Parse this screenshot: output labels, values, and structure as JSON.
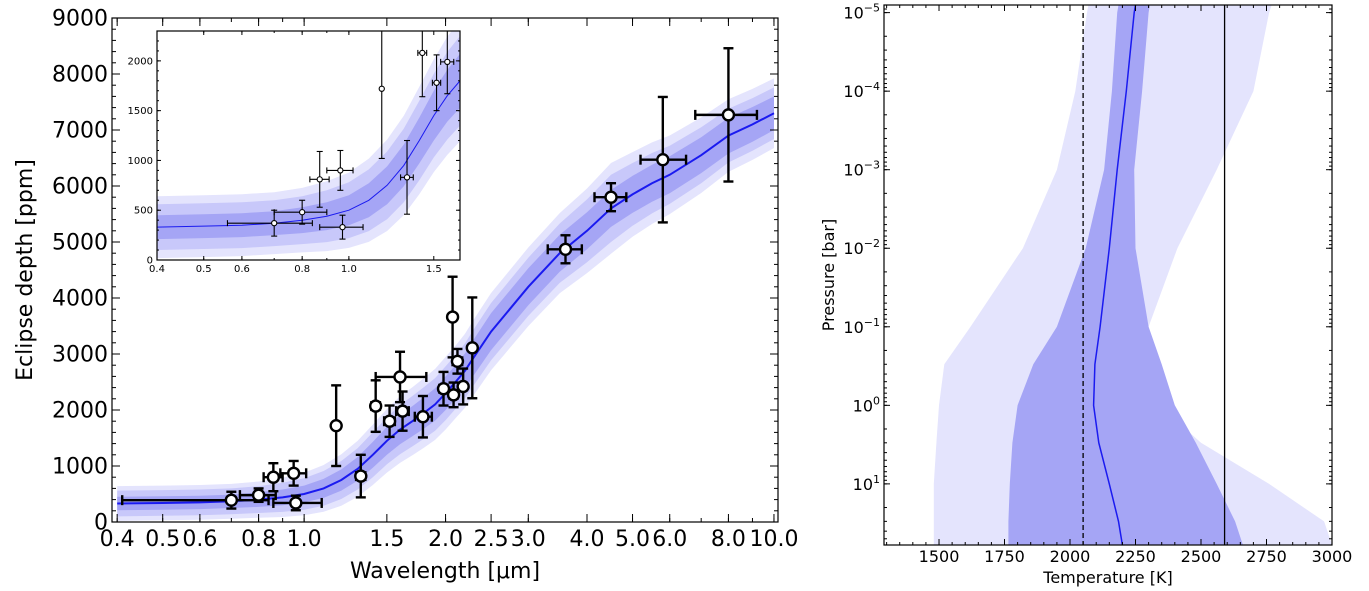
{
  "chart_data": [
    {
      "type": "scatter",
      "xlabel": "Wavelength [μm]",
      "ylabel": "Eclipse depth [ppm]",
      "xscale": "log",
      "xlim": [
        0.39,
        10.2
      ],
      "ylim": [
        0,
        9000
      ],
      "xticks": [
        0.4,
        0.5,
        0.6,
        0.8,
        1.0,
        1.5,
        2.0,
        2.5,
        3.0,
        4.0,
        5.0,
        6.0,
        8.0,
        10.0
      ],
      "xtick_labels": [
        "0.4",
        "0.5",
        "0.6",
        "0.8",
        "1.0",
        "1.5",
        "2.0",
        "2.5",
        "3.0",
        "4.0",
        "5.0",
        "6.0",
        "8.0",
        "10.0"
      ],
      "yticks": [
        0,
        1000,
        2000,
        3000,
        4000,
        5000,
        6000,
        7000,
        8000,
        9000
      ],
      "ytick_labels": [
        "0",
        "1000",
        "2000",
        "3000",
        "4000",
        "5000",
        "6000",
        "7000",
        "8000",
        "9000"
      ],
      "model": {
        "x": [
          0.4,
          0.5,
          0.6,
          0.7,
          0.8,
          0.9,
          1.0,
          1.1,
          1.2,
          1.3,
          1.4,
          1.5,
          1.6,
          1.7,
          1.8,
          1.9,
          2.0,
          2.1,
          2.2,
          2.3,
          2.5,
          3.0,
          3.5,
          4.0,
          4.5,
          5.0,
          5.5,
          6.0,
          7.0,
          8.0,
          9.0,
          10.0
        ],
        "median": [
          330,
          340,
          350,
          370,
          400,
          440,
          500,
          600,
          750,
          950,
          1200,
          1450,
          1650,
          1800,
          1950,
          2100,
          2300,
          2500,
          2700,
          2950,
          3400,
          4200,
          4800,
          5200,
          5600,
          5850,
          6050,
          6200,
          6550,
          6900,
          7100,
          7300
        ],
        "sigma1": [
          120,
          120,
          120,
          120,
          130,
          140,
          150,
          170,
          190,
          210,
          230,
          250,
          260,
          270,
          280,
          290,
          300,
          300,
          310,
          320,
          330,
          330,
          330,
          330,
          330,
          330,
          330,
          330,
          320,
          320,
          310,
          300
        ],
        "sigma2": [
          230,
          230,
          230,
          230,
          240,
          260,
          280,
          310,
          340,
          370,
          400,
          420,
          440,
          450,
          460,
          470,
          480,
          480,
          490,
          500,
          510,
          520,
          530,
          560,
          600,
          560,
          540,
          520,
          500,
          480,
          470,
          460
        ]
      },
      "series": [
        {
          "points": [
            {
              "x": 0.7,
              "xerr": [
                0.29,
                0.14
              ],
              "y": 390,
              "yerr": 150
            },
            {
              "x": 0.8,
              "xerr": [
                0.07,
                0.07
              ],
              "y": 480,
              "yerr": 120
            },
            {
              "x": 0.86,
              "xerr": [
                0.04,
                0.04
              ],
              "y": 800,
              "yerr": 250
            },
            {
              "x": 0.95,
              "xerr": [
                0.06,
                0.06
              ],
              "y": 870,
              "yerr": 220
            },
            {
              "x": 0.96,
              "xerr": [
                0.1,
                0.13
              ],
              "y": 340,
              "yerr": 130
            },
            {
              "x": 1.17,
              "xerr": [
                0,
                0
              ],
              "y": 1720,
              "yerr": 720
            },
            {
              "x": 1.32,
              "xerr": [
                0.03,
                0.03
              ],
              "y": 820,
              "yerr": 380
            },
            {
              "x": 1.42,
              "xerr": [
                0.03,
                0.03
              ],
              "y": 2070,
              "yerr": 460
            },
            {
              "x": 1.52,
              "xerr": [
                0.04,
                0.04
              ],
              "y": 1800,
              "yerr": 280
            },
            {
              "x": 1.6,
              "xerr": [
                0.18,
                0.22
              ],
              "y": 2590,
              "yerr": 450
            },
            {
              "x": 1.62,
              "xerr": [
                0.05,
                0.05
              ],
              "y": 1980,
              "yerr": 350
            },
            {
              "x": 1.79,
              "xerr": [
                0.07,
                0.08
              ],
              "y": 1880,
              "yerr": 370
            },
            {
              "x": 1.98,
              "xerr": [
                0.04,
                0.04
              ],
              "y": 2380,
              "yerr": 300
            },
            {
              "x": 2.07,
              "xerr": [
                0.03,
                0.03
              ],
              "y": 3660,
              "yerr": 720
            },
            {
              "x": 2.08,
              "xerr": [
                0.04,
                0.04
              ],
              "y": 2270,
              "yerr": 220
            },
            {
              "x": 2.12,
              "xerr": [
                0.05,
                0.05
              ],
              "y": 2870,
              "yerr": 220
            },
            {
              "x": 2.18,
              "xerr": [
                0.04,
                0.04
              ],
              "y": 2420,
              "yerr": 320
            },
            {
              "x": 2.28,
              "xerr": [
                0.03,
                0.03
              ],
              "y": 3110,
              "yerr": 900
            },
            {
              "x": 3.6,
              "xerr": [
                0.3,
                0.3
              ],
              "y": 4870,
              "yerr": 250
            },
            {
              "x": 4.5,
              "xerr": [
                0.35,
                0.35
              ],
              "y": 5800,
              "yerr": 250
            },
            {
              "x": 5.8,
              "xerr": [
                0.6,
                0.7
              ],
              "y": 6470,
              "yerr": 1120
            },
            {
              "x": 8.0,
              "xerr": [
                1.2,
                1.2
              ],
              "y": 7270,
              "yerr": 1190
            }
          ]
        }
      ]
    },
    {
      "type": "scatter",
      "inset": true,
      "xscale": "log",
      "xlim": [
        0.4,
        1.7
      ],
      "ylim": [
        0,
        2300
      ],
      "xticks": [
        0.4,
        0.5,
        0.6,
        0.8,
        1.0,
        1.5
      ],
      "xtick_labels": [
        "0.4",
        "0.5",
        "0.6",
        "0.8",
        "1.0",
        "1.5"
      ],
      "yticks": [
        0,
        500,
        1000,
        1500,
        2000
      ],
      "ytick_labels": [
        "0",
        "500",
        "1000",
        "1500",
        "2000"
      ],
      "model": {
        "x": [
          0.4,
          0.5,
          0.6,
          0.7,
          0.8,
          0.9,
          1.0,
          1.1,
          1.2,
          1.3,
          1.4,
          1.5,
          1.6,
          1.7
        ],
        "median": [
          330,
          340,
          350,
          370,
          400,
          440,
          500,
          600,
          750,
          950,
          1200,
          1450,
          1650,
          1800
        ],
        "sigma1": [
          120,
          120,
          120,
          120,
          130,
          140,
          150,
          170,
          190,
          210,
          230,
          250,
          260,
          270
        ],
        "sigma2": [
          230,
          230,
          230,
          230,
          240,
          260,
          280,
          310,
          340,
          370,
          400,
          420,
          440,
          450
        ]
      },
      "series": [
        {
          "points": [
            {
              "x": 0.7,
              "xerr": [
                0.14,
                0.14
              ],
              "y": 370,
              "yerr": 130
            },
            {
              "x": 0.8,
              "xerr": [
                0.1,
                0.1
              ],
              "y": 480,
              "yerr": 120
            },
            {
              "x": 0.87,
              "xerr": [
                0.04,
                0.04
              ],
              "y": 810,
              "yerr": 280
            },
            {
              "x": 0.96,
              "xerr": [
                0.06,
                0.06
              ],
              "y": 900,
              "yerr": 200
            },
            {
              "x": 0.97,
              "xerr": [
                0.1,
                0.1
              ],
              "y": 330,
              "yerr": 120
            },
            {
              "x": 1.17,
              "xerr": [
                0,
                0
              ],
              "y": 1720,
              "yerr": 700
            },
            {
              "x": 1.32,
              "xerr": [
                0.04,
                0.04
              ],
              "y": 830,
              "yerr": 370
            },
            {
              "x": 1.42,
              "xerr": [
                0.03,
                0.03
              ],
              "y": 2080,
              "yerr": 440
            },
            {
              "x": 1.52,
              "xerr": [
                0.03,
                0.03
              ],
              "y": 1780,
              "yerr": 280
            },
            {
              "x": 1.6,
              "xerr": [
                0.05,
                0.05
              ],
              "y": 1990,
              "yerr": 320
            }
          ]
        }
      ]
    },
    {
      "type": "line",
      "xlabel": "Temperature [K]",
      "ylabel": "Pressure [bar]",
      "yscale": "log",
      "y_inverted": true,
      "xlim": [
        1290,
        3000
      ],
      "ylim": [
        8e-06,
        60
      ],
      "xticks": [
        1500,
        1750,
        2000,
        2250,
        2500,
        2750,
        3000
      ],
      "xtick_labels": [
        "1500",
        "1750",
        "2000",
        "2250",
        "2500",
        "2750",
        "3000"
      ],
      "yticks": [
        1e-05,
        0.0001,
        0.001,
        0.01,
        0.1,
        1,
        10
      ],
      "ytick_labels": [
        "10^-5",
        "10^-4",
        "10^-3",
        "10^-2",
        "10^-1",
        "10^0",
        "10^1"
      ],
      "profile": {
        "pressure": [
          8e-06,
          1e-05,
          0.0001,
          0.001,
          0.01,
          0.1,
          0.3,
          1,
          3,
          10,
          30,
          60
        ],
        "median": [
          2250,
          2245,
          2215,
          2180,
          2150,
          2115,
          2095,
          2090,
          2110,
          2150,
          2185,
          2200
        ],
        "sigma1_low": [
          2185,
          2180,
          2160,
          2130,
          2060,
          1950,
          1860,
          1800,
          1780,
          1770,
          1765,
          1765
        ],
        "sigma1_high": [
          2305,
          2300,
          2275,
          2245,
          2250,
          2300,
          2350,
          2400,
          2480,
          2560,
          2630,
          2660
        ],
        "sigma2_low": [
          2070,
          2065,
          2020,
          1950,
          1820,
          1620,
          1520,
          1500,
          1490,
          1480,
          1480,
          1480
        ],
        "sigma2_high": [
          2770,
          2760,
          2700,
          2560,
          2410,
          2300,
          2280,
          2340,
          2500,
          2760,
          2970,
          3000
        ]
      },
      "vlines": [
        {
          "x": 2050,
          "style": "dashed"
        },
        {
          "x": 2590,
          "style": "solid"
        }
      ]
    }
  ],
  "colors": {
    "median_line": "#1a1af0",
    "band_1sigma": "#a5a5f5",
    "band_2sigma": "#c8c8fa",
    "band_3sigma": "#e4e4fd",
    "marker_face": "#ffffff",
    "marker_edge": "#000000"
  }
}
